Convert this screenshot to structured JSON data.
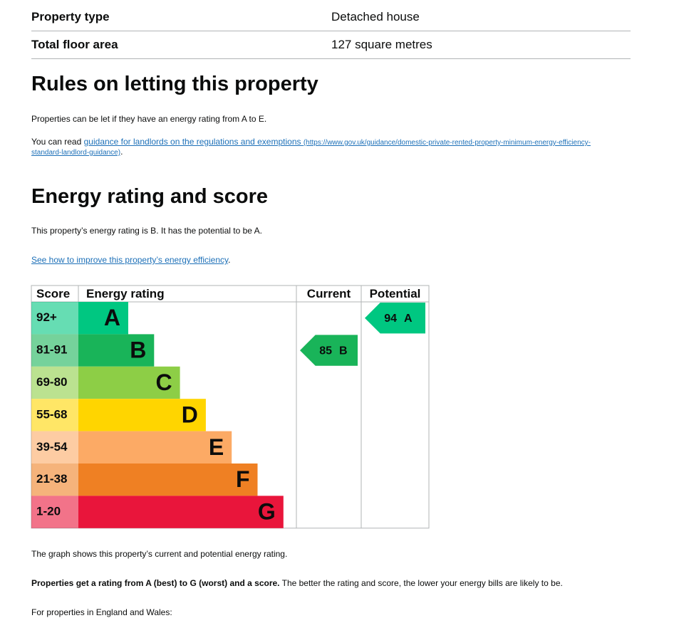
{
  "summary": {
    "rows": [
      [
        "Property type",
        "Detached house"
      ],
      [
        "Total floor area",
        "127 square metres"
      ]
    ]
  },
  "letting": {
    "title": "Rules on letting this property",
    "p1": "Properties can be let if they have an energy rating from A to E.",
    "p2_prefix": "You can read ",
    "p2_link": "guidance for landlords on the regulations and exemptions",
    "p2_link_url": "(https://www.gov.uk/guidance/domestic-private-rented-property-minimum-energy-efficiency-standard-landlord-guidance)",
    "p2_suffix": "."
  },
  "energy": {
    "title": "Energy rating and score",
    "p1": "This property’s energy rating is B. It has the potential to be A.",
    "link": "See how to improve this property’s energy efficiency",
    "link_suffix": ".",
    "chart": {
      "headers": [
        "Score",
        "Energy rating",
        "Current",
        "Potential"
      ],
      "bands": [
        {
          "score": "92+",
          "letter": "A",
          "color": "#00c781"
        },
        {
          "score": "81-91",
          "letter": "B",
          "color": "#19b459"
        },
        {
          "score": "69-80",
          "letter": "C",
          "color": "#8dce46"
        },
        {
          "score": "55-68",
          "letter": "D",
          "color": "#ffd500"
        },
        {
          "score": "39-54",
          "letter": "E",
          "color": "#fcaa65"
        },
        {
          "score": "21-38",
          "letter": "F",
          "color": "#ef8023"
        },
        {
          "score": "1-20",
          "letter": "G",
          "color": "#e9153b"
        }
      ],
      "current": {
        "value": 85,
        "letter": "B"
      },
      "potential": {
        "value": 94,
        "letter": "A"
      }
    },
    "after1": "The graph shows this property’s current and potential energy rating.",
    "after2_bold": "Properties get a rating from A (best) to G (worst) and a score.",
    "after2_rest": " The better the rating and score, the lower your energy bills are likely to be.",
    "after3": "For properties in England and Wales:"
  }
}
